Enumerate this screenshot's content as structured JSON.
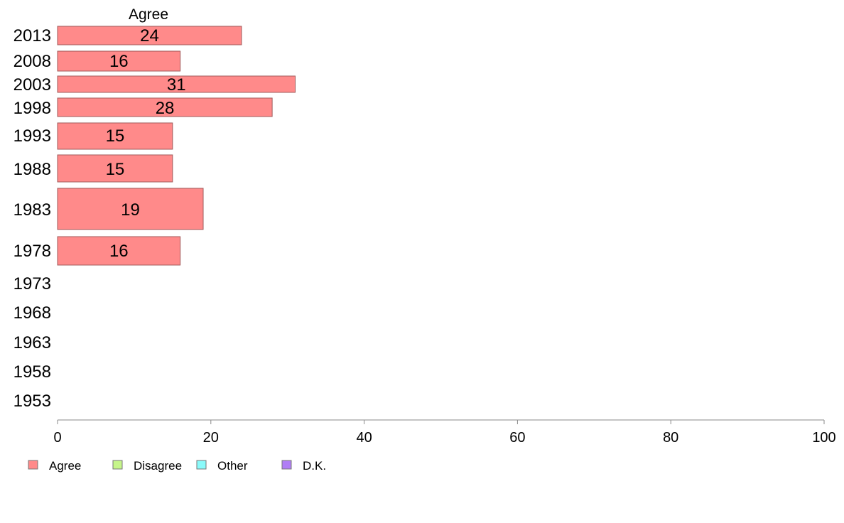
{
  "chart_data": {
    "type": "bar",
    "orientation": "horizontal",
    "title": "Agree",
    "categories": [
      "2013",
      "2008",
      "2003",
      "1998",
      "1993",
      "1988",
      "1983",
      "1978",
      "1973",
      "1968",
      "1963",
      "1958",
      "1953"
    ],
    "series": [
      {
        "name": "Agree",
        "color": "#ff8a8a",
        "values": [
          24,
          16,
          31,
          28,
          15,
          15,
          19,
          16,
          null,
          null,
          null,
          null,
          null
        ],
        "labels": [
          "24",
          "16",
          "31",
          "28",
          "15",
          "15",
          "19",
          "16",
          "",
          "",
          "",
          "",
          ""
        ]
      }
    ],
    "xlim": [
      0,
      100
    ],
    "xticks": [
      "0",
      "20",
      "40",
      "60",
      "80",
      "100"
    ],
    "legend": {
      "placement": "bottom-left",
      "items": [
        {
          "label": "Agree",
          "color": "#ff8a8a"
        },
        {
          "label": "Disagree",
          "color": "#c6f58a"
        },
        {
          "label": "Other",
          "color": "#8afafa"
        },
        {
          "label": "D.K.",
          "color": "#b07ef5"
        }
      ]
    },
    "grid": false
  }
}
